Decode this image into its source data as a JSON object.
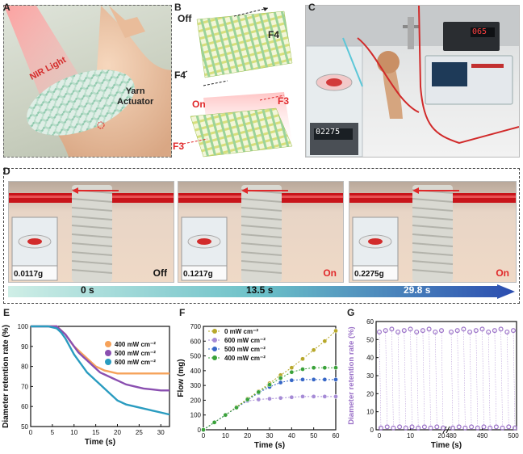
{
  "panels": {
    "A": {
      "letter": "A",
      "nir_label": "NIR Light",
      "actuator_label_1": "Yarn",
      "actuator_label_2": "Actuator"
    },
    "B": {
      "letter": "B",
      "off_label": "Off",
      "on_label": "On",
      "f4_top": "F4",
      "f4_left": "F4",
      "f3_right": "F3",
      "f3_left": "F3"
    },
    "C": {
      "letter": "C",
      "scale_readout": "02275",
      "meter_readout": "065"
    },
    "D": {
      "letter": "D",
      "frames": [
        {
          "weight": "0.0117g",
          "state": "Off",
          "time": "0 s"
        },
        {
          "weight": "0.1217g",
          "state": "On",
          "time": "13.5 s"
        },
        {
          "weight": "0.2275g",
          "state": "On",
          "time": "29.8 s"
        }
      ]
    },
    "E": {
      "letter": "E"
    },
    "F": {
      "letter": "F"
    },
    "G": {
      "letter": "G"
    }
  },
  "colors": {
    "red": "#e0282a",
    "purple": "#9b72c8",
    "orange": "#f6a25a",
    "violet": "#8a4fb0",
    "teal": "#2a9cc0",
    "olive": "#b7a82a",
    "green": "#3aa23a",
    "lav": "#a68bd6",
    "blue": "#3767c7"
  },
  "chart_data": [
    {
      "type": "line",
      "panel": "E",
      "xlabel": "Time (s)",
      "ylabel": "Diameter retention rate (%)",
      "xlim": [
        0,
        32
      ],
      "ylim": [
        50,
        100
      ],
      "xticks": [
        0,
        5,
        10,
        15,
        20,
        25,
        30
      ],
      "yticks": [
        50,
        60,
        70,
        80,
        90,
        100
      ],
      "legend_position": "top-right",
      "series": [
        {
          "name": "400 mW cm⁻²",
          "color": "#f6a25a",
          "x": [
            0,
            2,
            4,
            6,
            7,
            8,
            9,
            10,
            11,
            12,
            13,
            14,
            15,
            16,
            17,
            18,
            19,
            20,
            22,
            24,
            26,
            28,
            30,
            32
          ],
          "y": [
            100,
            100,
            100,
            100,
            98,
            96,
            93,
            90,
            88,
            86,
            84,
            82,
            80,
            79,
            78,
            77.5,
            77,
            76.5,
            76.5,
            76.5,
            76.5,
            76.5,
            76.5,
            76.5
          ]
        },
        {
          "name": "500 mW cm⁻²",
          "color": "#8a4fb0",
          "x": [
            0,
            2,
            4,
            6,
            7,
            8,
            9,
            10,
            11,
            12,
            13,
            14,
            15,
            16,
            17,
            18,
            19,
            20,
            22,
            24,
            26,
            28,
            30,
            32
          ],
          "y": [
            100,
            100,
            100,
            100,
            98,
            96,
            93,
            90,
            87,
            85,
            83,
            81,
            79,
            77,
            76,
            75,
            74,
            73,
            71,
            70,
            69,
            68.5,
            68,
            68
          ]
        },
        {
          "name": "600 mW cm⁻²",
          "color": "#2a9cc0",
          "x": [
            0,
            2,
            4,
            6,
            7,
            8,
            9,
            10,
            11,
            12,
            13,
            14,
            15,
            16,
            17,
            18,
            19,
            20,
            22,
            24,
            26,
            28,
            30,
            32
          ],
          "y": [
            100,
            100,
            100,
            99,
            97,
            94,
            90,
            86,
            83,
            80,
            77,
            75,
            73,
            71,
            69,
            67,
            65,
            63,
            61,
            60,
            59,
            58,
            57,
            56
          ]
        }
      ]
    },
    {
      "type": "line",
      "panel": "F",
      "xlabel": "Time (s)",
      "ylabel": "Flow (mg)",
      "xlim": [
        0,
        60
      ],
      "ylim": [
        0,
        700
      ],
      "xticks": [
        0,
        10,
        20,
        30,
        40,
        50,
        60
      ],
      "yticks": [
        0,
        100,
        200,
        300,
        400,
        500,
        600,
        700
      ],
      "legend_position": "top-left",
      "series": [
        {
          "name": "0 mW cm⁻²",
          "color": "#b7a82a",
          "x": [
            0,
            5,
            10,
            15,
            20,
            25,
            30,
            35,
            40,
            45,
            50,
            55,
            60
          ],
          "y": [
            0,
            50,
            100,
            155,
            210,
            260,
            315,
            370,
            420,
            480,
            540,
            600,
            670
          ]
        },
        {
          "name": "600 mW cm⁻²",
          "color": "#a68bd6",
          "x": [
            0,
            5,
            10,
            15,
            20,
            25,
            30,
            35,
            40,
            45,
            50,
            55,
            60
          ],
          "y": [
            0,
            50,
            100,
            150,
            195,
            205,
            210,
            215,
            220,
            225,
            225,
            225,
            225
          ]
        },
        {
          "name": "500 mW cm⁻²",
          "color": "#3767c7",
          "x": [
            0,
            5,
            10,
            15,
            20,
            25,
            30,
            35,
            40,
            45,
            50,
            55,
            60
          ],
          "y": [
            0,
            50,
            100,
            150,
            200,
            250,
            290,
            320,
            335,
            340,
            340,
            340,
            340
          ]
        },
        {
          "name": "400 mW cm⁻²",
          "color": "#3aa23a",
          "x": [
            0,
            5,
            10,
            15,
            20,
            25,
            30,
            35,
            40,
            45,
            50,
            55,
            60
          ],
          "y": [
            0,
            50,
            100,
            150,
            205,
            255,
            305,
            350,
            390,
            410,
            420,
            420,
            420
          ]
        }
      ]
    },
    {
      "type": "scatter",
      "panel": "G",
      "xlabel": "Time (s)",
      "ylabel": "Diameter retention rate (%)",
      "ylim": [
        0,
        60
      ],
      "yticks": [
        0,
        10,
        20,
        30,
        40,
        50,
        60
      ],
      "xtick_labels": [
        "0",
        "10",
        "20",
        "480",
        "490",
        "500"
      ],
      "axis_break": "between 20 and 480",
      "high_value": 55,
      "low_value": 1,
      "segments": [
        {
          "x_start": 0,
          "x_end": 20
        },
        {
          "x_start": 480,
          "x_end": 500
        }
      ],
      "color": "#9b72c8"
    }
  ]
}
